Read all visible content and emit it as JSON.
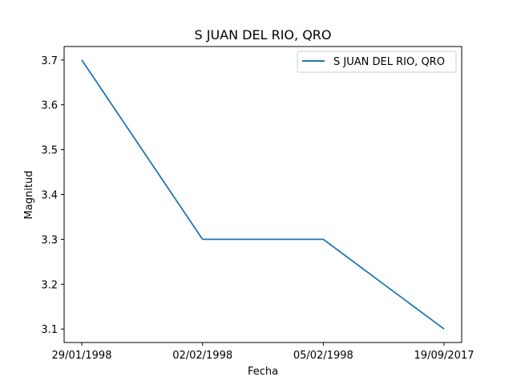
{
  "chart_data": {
    "type": "line",
    "title": "S JUAN DEL RIO, QRO",
    "xlabel": "Fecha",
    "ylabel": "Magnitud",
    "categories": [
      "29/01/1998",
      "02/02/1998",
      "05/02/1998",
      "19/09/2017"
    ],
    "series": [
      {
        "name": "S JUAN DEL RIO, QRO",
        "values": [
          3.7,
          3.3,
          3.3,
          3.1
        ],
        "color": "#1f77b4"
      }
    ],
    "ylim": [
      3.07,
      3.73
    ],
    "yticks": [
      3.1,
      3.2,
      3.3,
      3.4,
      3.5,
      3.6,
      3.7
    ],
    "ytick_labels": [
      "3.1",
      "3.2",
      "3.3",
      "3.4",
      "3.5",
      "3.6",
      "3.7"
    ],
    "grid": false,
    "legend_position": "top-right"
  }
}
